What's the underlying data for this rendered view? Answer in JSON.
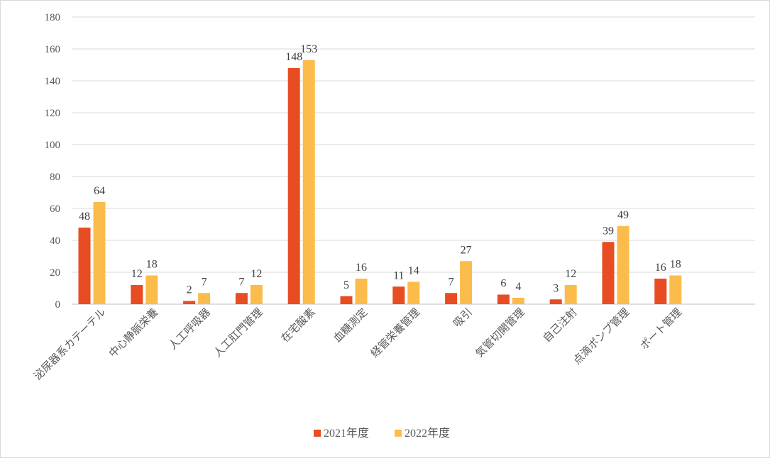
{
  "chart_data": {
    "type": "bar",
    "title": "",
    "xlabel": "",
    "ylabel": "",
    "ylim": [
      0,
      180
    ],
    "yticks": [
      0,
      20,
      40,
      60,
      80,
      100,
      120,
      140,
      160,
      180
    ],
    "grid": true,
    "legend_position": "bottom",
    "categories": [
      "泌尿器系カテーテル",
      "中心静脈栄養",
      "人工呼吸器",
      "人工肛門管理",
      "在宅酸素",
      "血糖測定",
      "経管栄養管理",
      "吸引",
      "気管切開管理",
      "自己注射",
      "点滴ポンプ管理",
      "ポート管理"
    ],
    "series": [
      {
        "name": "2021年度",
        "color": "#e84c22",
        "values": [
          48,
          12,
          2,
          7,
          148,
          5,
          11,
          7,
          6,
          3,
          39,
          16
        ]
      },
      {
        "name": "2022年度",
        "color": "#fbbc4b",
        "values": [
          64,
          18,
          7,
          12,
          153,
          16,
          14,
          27,
          4,
          12,
          49,
          18
        ]
      }
    ]
  }
}
